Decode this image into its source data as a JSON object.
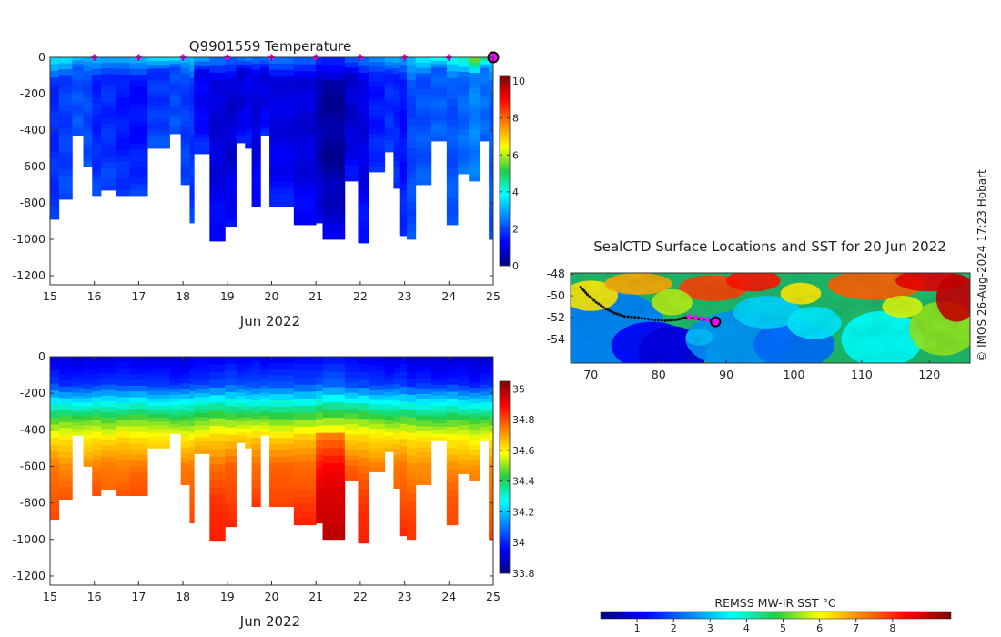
{
  "page": {
    "credit": "© IMOS 26-Aug-2024 17:23 Hobart"
  },
  "colors": {
    "jet": [
      "#00007f",
      "#0000ff",
      "#007fff",
      "#00ffff",
      "#7fff7f",
      "#ffff00",
      "#ff7f00",
      "#ff0000",
      "#7f0000"
    ],
    "marker": "#ff00ff",
    "track": "#111111"
  },
  "chart_data": [
    {
      "id": "temperature",
      "type": "heatmap",
      "title": "Q9901559  Temperature",
      "xlabel": "Jun 2022",
      "xlim": [
        15,
        25
      ],
      "ylim": [
        -1250,
        0
      ],
      "xticks": [
        "15",
        "16",
        "17",
        "18",
        "19",
        "20",
        "21",
        "22",
        "23",
        "24",
        "25"
      ],
      "yticks": [
        0,
        -200,
        -400,
        -600,
        -800,
        -1000,
        -1200
      ],
      "ytick_labels": [
        "0",
        "-200",
        "-400",
        "-600",
        "-800",
        "-1000",
        "-1200"
      ],
      "colorbar": {
        "min": 0,
        "max": 10.3,
        "ticks": [
          0,
          2,
          4,
          6,
          8,
          10
        ],
        "tick_labels": [
          "0",
          "2",
          "4",
          "6",
          "8",
          "10"
        ]
      },
      "surface_markers_day": [
        16,
        17,
        18,
        19,
        20,
        21,
        22,
        23,
        24,
        25
      ],
      "profiles": [
        {
          "x0": 15.0,
          "x1": 15.2,
          "depth": 890,
          "surf": 3.8,
          "mid": 1.7,
          "deep": 1.8
        },
        {
          "x0": 15.2,
          "x1": 15.5,
          "depth": 780,
          "surf": 3.6,
          "mid": 1.9,
          "deep": 2.0
        },
        {
          "x0": 15.5,
          "x1": 15.75,
          "depth": 430,
          "surf": 3.4,
          "mid": 2.1,
          "deep": 2.2
        },
        {
          "x0": 15.75,
          "x1": 15.95,
          "depth": 600,
          "surf": 3.3,
          "mid": 2.0,
          "deep": 2.1
        },
        {
          "x0": 15.95,
          "x1": 16.15,
          "depth": 760,
          "surf": 3.2,
          "mid": 1.6,
          "deep": 2.0
        },
        {
          "x0": 16.15,
          "x1": 16.5,
          "depth": 730,
          "surf": 3.0,
          "mid": 1.7,
          "deep": 2.0
        },
        {
          "x0": 16.5,
          "x1": 16.8,
          "depth": 760,
          "surf": 3.3,
          "mid": 1.5,
          "deep": 1.9
        },
        {
          "x0": 16.8,
          "x1": 17.2,
          "depth": 760,
          "surf": 3.4,
          "mid": 1.4,
          "deep": 1.9
        },
        {
          "x0": 17.2,
          "x1": 17.7,
          "depth": 500,
          "surf": 3.6,
          "mid": 1.8,
          "deep": 2.1
        },
        {
          "x0": 17.7,
          "x1": 17.95,
          "depth": 420,
          "surf": 3.8,
          "mid": 2.0,
          "deep": 2.2
        },
        {
          "x0": 17.95,
          "x1": 18.15,
          "depth": 700,
          "surf": 3.5,
          "mid": 1.9,
          "deep": 2.0
        },
        {
          "x0": 18.15,
          "x1": 18.25,
          "depth": 910,
          "surf": 3.4,
          "mid": 1.8,
          "deep": 1.9
        },
        {
          "x0": 18.25,
          "x1": 18.6,
          "depth": 530,
          "surf": 3.0,
          "mid": 1.2,
          "deep": 1.8
        },
        {
          "x0": 18.6,
          "x1": 18.95,
          "depth": 1010,
          "surf": 2.6,
          "mid": 0.9,
          "deep": 1.5
        },
        {
          "x0": 18.95,
          "x1": 19.2,
          "depth": 930,
          "surf": 2.5,
          "mid": 0.8,
          "deep": 1.4
        },
        {
          "x0": 19.2,
          "x1": 19.4,
          "depth": 470,
          "surf": 2.6,
          "mid": 0.9,
          "deep": 1.5
        },
        {
          "x0": 19.4,
          "x1": 19.55,
          "depth": 500,
          "surf": 2.7,
          "mid": 1.1,
          "deep": 1.6
        },
        {
          "x0": 19.55,
          "x1": 19.75,
          "depth": 820,
          "surf": 2.6,
          "mid": 0.9,
          "deep": 1.5
        },
        {
          "x0": 19.75,
          "x1": 19.95,
          "depth": 430,
          "surf": 2.7,
          "mid": 1.0,
          "deep": 1.7
        },
        {
          "x0": 19.95,
          "x1": 20.5,
          "depth": 820,
          "surf": 2.5,
          "mid": 1.0,
          "deep": 1.6
        },
        {
          "x0": 20.5,
          "x1": 21.0,
          "depth": 920,
          "surf": 2.3,
          "mid": 0.9,
          "deep": 1.4
        },
        {
          "x0": 21.0,
          "x1": 21.15,
          "depth": 910,
          "surf": 2.0,
          "mid": 0.5,
          "deep": 1.2
        },
        {
          "x0": 21.15,
          "x1": 21.65,
          "depth": 1000,
          "surf": 1.8,
          "mid": 0.3,
          "deep": 1.1
        },
        {
          "x0": 21.65,
          "x1": 21.95,
          "depth": 680,
          "surf": 2.2,
          "mid": 0.8,
          "deep": 1.5
        },
        {
          "x0": 21.95,
          "x1": 22.2,
          "depth": 1020,
          "surf": 2.5,
          "mid": 1.0,
          "deep": 1.6
        },
        {
          "x0": 22.2,
          "x1": 22.55,
          "depth": 630,
          "surf": 3.0,
          "mid": 1.5,
          "deep": 1.8
        },
        {
          "x0": 22.55,
          "x1": 22.75,
          "depth": 520,
          "surf": 3.2,
          "mid": 1.7,
          "deep": 1.9
        },
        {
          "x0": 22.75,
          "x1": 22.9,
          "depth": 720,
          "surf": 3.1,
          "mid": 1.6,
          "deep": 1.8
        },
        {
          "x0": 22.9,
          "x1": 23.05,
          "depth": 980,
          "surf": 3.0,
          "mid": 1.4,
          "deep": 1.8
        },
        {
          "x0": 23.05,
          "x1": 23.25,
          "depth": 1000,
          "surf": 3.4,
          "mid": 2.0,
          "deep": 2.1
        },
        {
          "x0": 23.25,
          "x1": 23.6,
          "depth": 700,
          "surf": 3.8,
          "mid": 2.1,
          "deep": 2.2
        },
        {
          "x0": 23.6,
          "x1": 23.95,
          "depth": 460,
          "surf": 4.0,
          "mid": 2.2,
          "deep": 2.3
        },
        {
          "x0": 23.95,
          "x1": 24.2,
          "depth": 920,
          "surf": 4.2,
          "mid": 2.1,
          "deep": 2.2
        },
        {
          "x0": 24.2,
          "x1": 24.45,
          "depth": 640,
          "surf": 4.6,
          "mid": 2.3,
          "deep": 2.4
        },
        {
          "x0": 24.45,
          "x1": 24.7,
          "depth": 680,
          "surf": 5.8,
          "mid": 2.6,
          "deep": 2.5
        },
        {
          "x0": 24.7,
          "x1": 24.9,
          "depth": 460,
          "surf": 5.0,
          "mid": 2.4,
          "deep": 2.3
        },
        {
          "x0": 24.9,
          "x1": 25.05,
          "depth": 1000,
          "surf": 3.8,
          "mid": 2.2,
          "deep": 2.1
        }
      ]
    },
    {
      "id": "salinity",
      "type": "heatmap",
      "title": "",
      "xlabel": "Jun 2022",
      "xlim": [
        15,
        25
      ],
      "ylim": [
        -1250,
        0
      ],
      "xticks": [
        "15",
        "16",
        "17",
        "18",
        "19",
        "20",
        "21",
        "22",
        "23",
        "24",
        "25"
      ],
      "yticks": [
        0,
        -200,
        -400,
        -600,
        -800,
        -1000,
        -1200
      ],
      "ytick_labels": [
        "0",
        "-200",
        "-400",
        "-600",
        "-800",
        "-1000",
        "-1200"
      ],
      "colorbar": {
        "min": 33.8,
        "max": 35.05,
        "ticks": [
          33.8,
          34,
          34.2,
          34.4,
          34.6,
          34.8,
          35
        ],
        "tick_labels": [
          "33.8",
          "34",
          "34.2",
          "34.4",
          "34.6",
          "34.8",
          "35"
        ]
      },
      "depth_profile": [
        {
          "d": 0,
          "v": 33.9
        },
        {
          "d": 150,
          "v": 34.0
        },
        {
          "d": 250,
          "v": 34.25
        },
        {
          "d": 350,
          "v": 34.45
        },
        {
          "d": 450,
          "v": 34.6
        },
        {
          "d": 600,
          "v": 34.72
        },
        {
          "d": 800,
          "v": 34.78
        },
        {
          "d": 1000,
          "v": 34.82
        }
      ]
    }
  ],
  "map": {
    "title": "SealCTD Surface Locations and SST for 20 Jun 2022",
    "xticks": [
      "70",
      "80",
      "90",
      "100",
      "110",
      "120"
    ],
    "xtick_values": [
      70,
      80,
      90,
      100,
      110,
      120
    ],
    "yticks": [
      "-48",
      "-50",
      "-52",
      "-54"
    ],
    "ytick_values": [
      -48,
      -50,
      -52,
      -54
    ],
    "lon_range": [
      67,
      126
    ],
    "lat_range": [
      -56.2,
      -47.9
    ],
    "colorbar_label": "REMSS MW-IR SST °C",
    "colorbar_ticks": [
      "1",
      "2",
      "3",
      "4",
      "5",
      "6",
      "7",
      "8"
    ],
    "colorbar_tick_values": [
      1,
      2,
      3,
      4,
      5,
      6,
      7,
      8
    ],
    "colorbar_range": [
      0,
      9.6
    ],
    "track": [
      [
        68.5,
        -49.2
      ],
      [
        69.5,
        -49.9
      ],
      [
        70.8,
        -50.6
      ],
      [
        72.2,
        -51.2
      ],
      [
        73.5,
        -51.6
      ],
      [
        75,
        -51.9
      ],
      [
        77,
        -52.0
      ],
      [
        79,
        -52.2
      ],
      [
        81,
        -52.3
      ],
      [
        82.7,
        -52.2
      ],
      [
        84,
        -52.0
      ],
      [
        85.5,
        -52.1
      ],
      [
        87,
        -52.2
      ],
      [
        88.4,
        -52.4
      ]
    ],
    "recent_positions": [
      [
        84.5,
        -51.9
      ],
      [
        85.5,
        -52.0
      ],
      [
        86.4,
        -52.1
      ],
      [
        87.2,
        -52.2
      ]
    ],
    "current_position": [
      88.4,
      -52.4
    ]
  }
}
